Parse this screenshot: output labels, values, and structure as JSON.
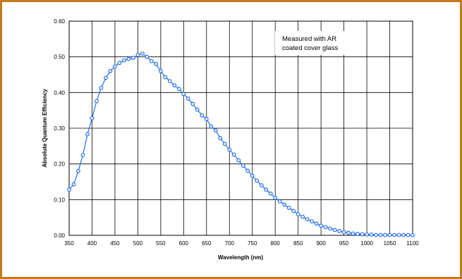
{
  "colors": {
    "frame": "#c57a1c",
    "series": "#1f6cf0",
    "grid": "#000000"
  },
  "chart_data": {
    "type": "line",
    "xlabel": "Wavelength (nm)",
    "ylabel": "Absolute Quantum Efficiency",
    "xlim": [
      350,
      1100
    ],
    "ylim": [
      0,
      0.6
    ],
    "grid": true,
    "legend": "none",
    "x_ticks": [
      "350",
      "400",
      "450",
      "500",
      "550",
      "600",
      "650",
      "700",
      "750",
      "800",
      "850",
      "900",
      "950",
      "1000",
      "1050",
      "1100"
    ],
    "y_ticks": [
      "0.00",
      "0.10",
      "0.20",
      "0.30",
      "0.40",
      "0.50",
      "0.60"
    ],
    "annotation": [
      "Measured with AR",
      "coated cover glass"
    ],
    "series": [
      {
        "x": [
          350,
          360,
          370,
          380,
          390,
          400,
          410,
          420,
          430,
          440,
          450,
          460,
          470,
          480,
          490,
          500,
          510,
          520,
          530,
          540,
          550,
          560,
          570,
          580,
          590,
          600,
          610,
          620,
          630,
          640,
          650,
          660,
          670,
          680,
          690,
          700,
          710,
          720,
          730,
          740,
          750,
          760,
          770,
          780,
          790,
          800,
          810,
          820,
          830,
          840,
          850,
          860,
          870,
          880,
          890,
          900,
          910,
          920,
          930,
          940,
          950,
          960,
          970,
          980,
          990,
          1000,
          1010,
          1020,
          1030,
          1040,
          1050,
          1060,
          1070,
          1080,
          1090,
          1100
        ],
        "y": [
          0.128,
          0.143,
          0.18,
          0.225,
          0.283,
          0.328,
          0.376,
          0.413,
          0.441,
          0.46,
          0.473,
          0.483,
          0.49,
          0.494,
          0.497,
          0.505,
          0.509,
          0.5,
          0.488,
          0.48,
          0.46,
          0.443,
          0.432,
          0.42,
          0.41,
          0.396,
          0.383,
          0.368,
          0.352,
          0.336,
          0.326,
          0.305,
          0.294,
          0.272,
          0.256,
          0.24,
          0.226,
          0.21,
          0.195,
          0.181,
          0.167,
          0.153,
          0.14,
          0.128,
          0.117,
          0.105,
          0.095,
          0.086,
          0.077,
          0.068,
          0.059,
          0.052,
          0.045,
          0.039,
          0.033,
          0.027,
          0.023,
          0.019,
          0.015,
          0.012,
          0.009,
          0.007,
          0.005,
          0.004,
          0.003,
          0.002,
          0.002,
          0.001,
          0.001,
          0.001,
          0.001,
          0.001,
          0.001,
          0.001,
          0.001,
          0.0
        ]
      }
    ]
  }
}
